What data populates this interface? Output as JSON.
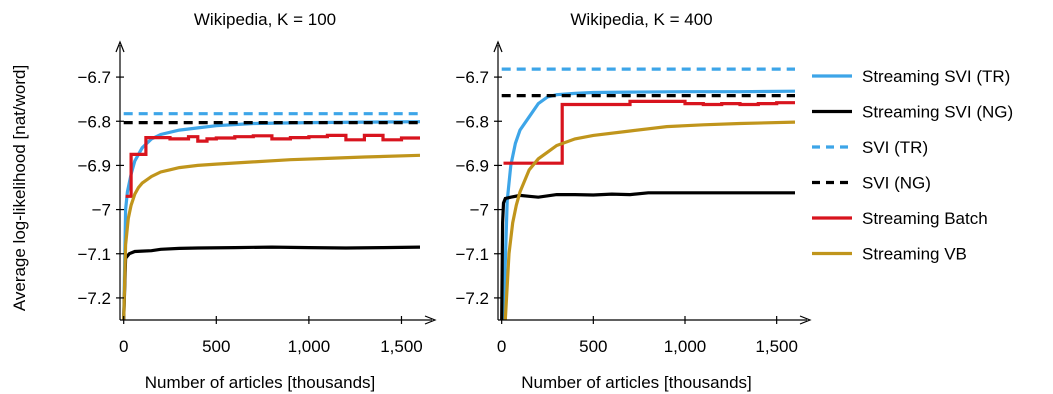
{
  "ylabel": "Average log-likelihood [nat/word]",
  "legend": {
    "placement": "right",
    "entries": [
      {
        "name": "Streaming SVI (TR)",
        "color": "#3da5e8",
        "dash": "solid"
      },
      {
        "name": "Streaming SVI (NG)",
        "color": "#000000",
        "dash": "solid"
      },
      {
        "name": "SVI (TR)",
        "color": "#3da5e8",
        "dash": "dashed"
      },
      {
        "name": "SVI (NG)",
        "color": "#000000",
        "dash": "dashed"
      },
      {
        "name": "Streaming Batch",
        "color": "#d8141e",
        "dash": "solid"
      },
      {
        "name": "Streaming VB",
        "color": "#c0951c",
        "dash": "solid"
      }
    ]
  },
  "chart_data": [
    {
      "type": "line",
      "title": "Wikipedia, K = 100",
      "xlabel": "Number of articles [thousands]",
      "ylabel": "Average log-likelihood [nat/word]",
      "xlim": [
        -20,
        1600
      ],
      "ylim": [
        -7.25,
        -6.65
      ],
      "xticks": [
        0,
        500,
        1000,
        1500
      ],
      "xtick_labels": [
        "0",
        "500",
        "1,000",
        "1,500"
      ],
      "yticks": [
        -6.7,
        -6.8,
        -6.9,
        -7.0,
        -7.1,
        -7.2
      ],
      "ytick_labels": [
        "−6.7",
        "−6.8",
        "−6.9",
        "−7",
        "−7.1",
        "−7.2"
      ],
      "grid": false,
      "series": [
        {
          "name": "Streaming SVI (TR)",
          "x": [
            0,
            10,
            20,
            40,
            60,
            100,
            150,
            200,
            300,
            400,
            500,
            700,
            1000,
            1300,
            1600
          ],
          "y": [
            -7.25,
            -7.0,
            -6.96,
            -6.92,
            -6.89,
            -6.86,
            -6.84,
            -6.83,
            -6.82,
            -6.815,
            -6.81,
            -6.805,
            -6.803,
            -6.802,
            -6.801
          ]
        },
        {
          "name": "Streaming SVI (NG)",
          "x": [
            0,
            10,
            30,
            60,
            100,
            150,
            200,
            300,
            400,
            600,
            800,
            1000,
            1200,
            1400,
            1600
          ],
          "y": [
            -7.25,
            -7.11,
            -7.1,
            -7.095,
            -7.094,
            -7.093,
            -7.09,
            -7.088,
            -7.087,
            -7.086,
            -7.085,
            -7.086,
            -7.087,
            -7.086,
            -7.085
          ]
        },
        {
          "name": "SVI (TR)",
          "x": [
            0,
            1600
          ],
          "y": [
            -6.783,
            -6.783
          ]
        },
        {
          "name": "SVI (NG)",
          "x": [
            0,
            1600
          ],
          "y": [
            -6.803,
            -6.803
          ]
        },
        {
          "name": "Streaming Batch",
          "step": true,
          "x": [
            10,
            40,
            70,
            120,
            200,
            250,
            300,
            350,
            400,
            450,
            500,
            600,
            700,
            800,
            900,
            1000,
            1100,
            1200,
            1300,
            1400,
            1500,
            1600
          ],
          "y": [
            -6.97,
            -6.875,
            -6.875,
            -6.837,
            -6.837,
            -6.84,
            -6.84,
            -6.835,
            -6.845,
            -6.84,
            -6.838,
            -6.835,
            -6.833,
            -6.84,
            -6.837,
            -6.835,
            -6.832,
            -6.842,
            -6.832,
            -6.842,
            -6.838,
            -6.838
          ]
        },
        {
          "name": "Streaming VB",
          "x": [
            0,
            10,
            25,
            40,
            60,
            80,
            100,
            150,
            200,
            250,
            300,
            400,
            500,
            700,
            900,
            1100,
            1300,
            1600
          ],
          "y": [
            -7.25,
            -7.08,
            -7.02,
            -6.99,
            -6.965,
            -6.95,
            -6.94,
            -6.925,
            -6.915,
            -6.91,
            -6.905,
            -6.9,
            -6.897,
            -6.892,
            -6.887,
            -6.884,
            -6.881,
            -6.877
          ]
        }
      ]
    },
    {
      "type": "line",
      "title": "Wikipedia, K = 400",
      "xlabel": "Number of articles [thousands]",
      "xlim": [
        -20,
        1600
      ],
      "ylim": [
        -7.25,
        -6.65
      ],
      "xticks": [
        0,
        500,
        1000,
        1500
      ],
      "xtick_labels": [
        "0",
        "500",
        "1,000",
        "1,500"
      ],
      "yticks": [
        -6.7,
        -6.8,
        -6.9,
        -7.0,
        -7.1,
        -7.2
      ],
      "ytick_labels": [
        "−6.7",
        "−6.8",
        "−6.9",
        "−7",
        "−7.1",
        "−7.2"
      ],
      "grid": false,
      "series": [
        {
          "name": "Streaming SVI (TR)",
          "x": [
            10,
            30,
            50,
            75,
            100,
            150,
            200,
            250,
            300,
            400,
            500,
            700,
            1000,
            1300,
            1600
          ],
          "y": [
            -7.25,
            -6.98,
            -6.9,
            -6.85,
            -6.82,
            -6.79,
            -6.76,
            -6.745,
            -6.74,
            -6.737,
            -6.735,
            -6.734,
            -6.733,
            -6.733,
            -6.732
          ]
        },
        {
          "name": "Streaming SVI (NG)",
          "x": [
            0,
            5,
            10,
            20,
            50,
            100,
            150,
            200,
            300,
            400,
            500,
            600,
            700,
            800,
            1000,
            1300,
            1600
          ],
          "y": [
            -7.25,
            -7.03,
            -6.985,
            -6.975,
            -6.972,
            -6.968,
            -6.97,
            -6.972,
            -6.966,
            -6.966,
            -6.967,
            -6.965,
            -6.966,
            -6.962,
            -6.962,
            -6.962,
            -6.962
          ]
        },
        {
          "name": "SVI (TR)",
          "x": [
            0,
            1600
          ],
          "y": [
            -6.682,
            -6.682
          ]
        },
        {
          "name": "SVI (NG)",
          "x": [
            0,
            1600
          ],
          "y": [
            -6.742,
            -6.742
          ]
        },
        {
          "name": "Streaming Batch",
          "step": true,
          "x": [
            10,
            330,
            700,
            1000,
            1100,
            1200,
            1300,
            1400,
            1500,
            1600
          ],
          "y": [
            -6.895,
            -6.762,
            -6.755,
            -6.76,
            -6.762,
            -6.76,
            -6.762,
            -6.76,
            -6.758,
            -6.758
          ]
        },
        {
          "name": "Streaming VB",
          "x": [
            20,
            40,
            60,
            80,
            100,
            150,
            200,
            250,
            300,
            400,
            500,
            700,
            900,
            1100,
            1300,
            1600
          ],
          "y": [
            -7.25,
            -7.1,
            -7.03,
            -6.99,
            -6.96,
            -6.91,
            -6.885,
            -6.87,
            -6.855,
            -6.84,
            -6.832,
            -6.822,
            -6.812,
            -6.808,
            -6.805,
            -6.802
          ]
        }
      ]
    }
  ]
}
